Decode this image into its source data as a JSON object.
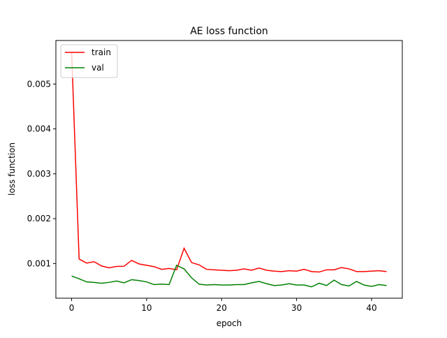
{
  "chart_data": {
    "type": "line",
    "title": "AE loss function",
    "xlabel": "epoch",
    "ylabel": "loss function",
    "xlim": [
      -2.1,
      44.1
    ],
    "ylim": [
      0.000227,
      0.00597
    ],
    "xticks": [
      0,
      10,
      20,
      30,
      40
    ],
    "xtick_labels": [
      "0",
      "10",
      "20",
      "30",
      "40"
    ],
    "yticks": [
      0.001,
      0.002,
      0.003,
      0.004,
      0.005
    ],
    "ytick_labels": [
      "0.001",
      "0.002",
      "0.003",
      "0.004",
      "0.005"
    ],
    "grid": false,
    "legend": "upper left",
    "series": [
      {
        "name": "train",
        "color": "#ff0000",
        "x": [
          0,
          1,
          2,
          3,
          4,
          5,
          6,
          7,
          8,
          9,
          10,
          11,
          12,
          13,
          14,
          15,
          16,
          17,
          18,
          19,
          20,
          21,
          22,
          23,
          24,
          25,
          26,
          27,
          28,
          29,
          30,
          31,
          32,
          33,
          34,
          35,
          36,
          37,
          38,
          39,
          40,
          41,
          42
        ],
        "values": [
          0.00572,
          0.0011,
          0.00101,
          0.00104,
          0.000945,
          0.000905,
          0.000935,
          0.00094,
          0.00107,
          0.00099,
          0.00096,
          0.00093,
          0.00087,
          0.00089,
          0.00086,
          0.00134,
          0.00102,
          0.00097,
          0.00087,
          0.00086,
          0.00085,
          0.00084,
          0.00085,
          0.00088,
          0.00085,
          0.0009,
          0.00085,
          0.00083,
          0.00082,
          0.00084,
          0.00083,
          0.00087,
          0.00082,
          0.00081,
          0.00086,
          0.00086,
          0.00091,
          0.00088,
          0.00082,
          0.00082,
          0.00083,
          0.00084,
          0.00082
        ]
      },
      {
        "name": "val",
        "color": "#008000",
        "x": [
          0,
          1,
          2,
          3,
          4,
          5,
          6,
          7,
          8,
          9,
          10,
          11,
          12,
          13,
          14,
          15,
          16,
          17,
          18,
          19,
          20,
          21,
          22,
          23,
          24,
          25,
          26,
          27,
          28,
          29,
          30,
          31,
          32,
          33,
          34,
          35,
          36,
          37,
          38,
          39,
          40,
          41,
          42
        ],
        "values": [
          0.00072,
          0.00066,
          0.00059,
          0.00058,
          0.00056,
          0.00058,
          0.00061,
          0.00057,
          0.00064,
          0.00062,
          0.00059,
          0.00053,
          0.00054,
          0.00053,
          0.00096,
          0.00088,
          0.00068,
          0.00054,
          0.00052,
          0.00053,
          0.00052,
          0.00052,
          0.00053,
          0.00053,
          0.00057,
          0.0006,
          0.00055,
          0.00051,
          0.00052,
          0.00055,
          0.00052,
          0.00052,
          0.00048,
          0.00056,
          0.00051,
          0.00063,
          0.00053,
          0.0005,
          0.0006,
          0.00052,
          0.00049,
          0.00053,
          0.00051
        ]
      }
    ]
  }
}
